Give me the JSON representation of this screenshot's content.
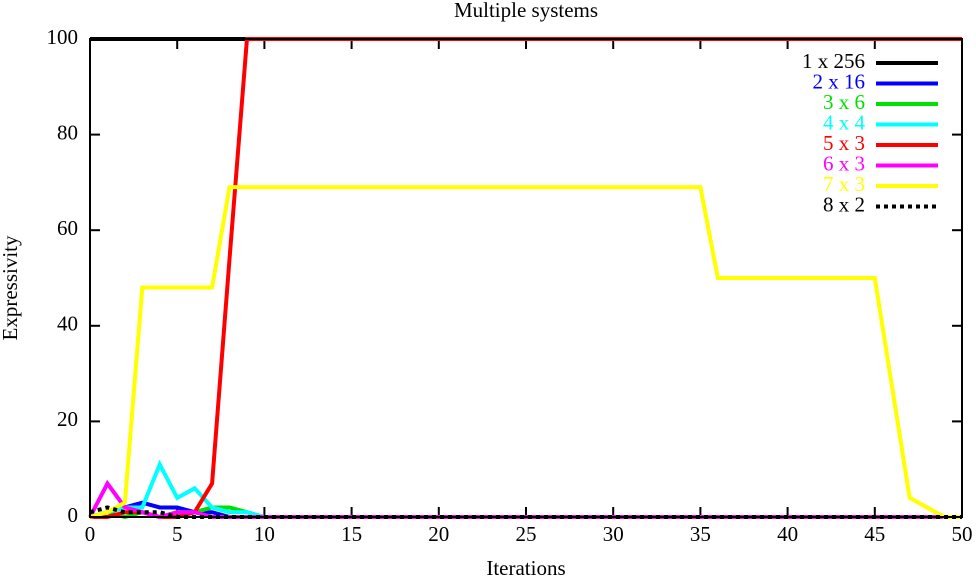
{
  "chart_data": {
    "type": "line",
    "title": "Multiple systems",
    "x_label": "Iterations",
    "y_label": "Expressivity",
    "x": [
      0,
      1,
      2,
      3,
      4,
      5,
      6,
      7,
      8,
      9,
      10,
      11,
      12,
      13,
      14,
      15,
      16,
      17,
      18,
      19,
      20,
      21,
      22,
      23,
      24,
      25,
      26,
      27,
      28,
      29,
      30,
      31,
      32,
      33,
      34,
      35,
      36,
      37,
      38,
      39,
      40,
      41,
      42,
      43,
      44,
      45,
      46,
      47,
      48,
      49,
      50
    ],
    "xlim": [
      0,
      50
    ],
    "xticks": [
      0,
      5,
      10,
      15,
      20,
      25,
      30,
      35,
      40,
      45,
      50
    ],
    "ylim": [
      0,
      100
    ],
    "yticks": [
      0,
      20,
      40,
      60,
      80,
      100
    ],
    "legend": "upper right",
    "series": [
      {
        "name": "1 x 256",
        "color": "#000000",
        "values": [
          100,
          100,
          100,
          100,
          100,
          100,
          100,
          100,
          100,
          100,
          100,
          100,
          100,
          100,
          100,
          100,
          100,
          100,
          100,
          100,
          100,
          100,
          100,
          100,
          100,
          100,
          100,
          100,
          100,
          100,
          100,
          100,
          100,
          100,
          100,
          100,
          100,
          100,
          100,
          100,
          100,
          100,
          100,
          100,
          100,
          100,
          100,
          100,
          100,
          100,
          100
        ]
      },
      {
        "name": "2 x 16",
        "color": "#0000ff",
        "values": [
          0,
          1,
          2,
          3,
          2,
          2,
          1,
          1,
          0,
          0,
          0,
          0,
          0,
          0,
          0,
          0,
          0,
          0,
          0,
          0,
          0,
          0,
          0,
          0,
          0,
          0,
          0,
          0,
          0,
          0,
          0,
          0,
          0,
          0,
          0,
          0,
          0,
          0,
          0,
          0,
          0,
          0,
          0,
          0,
          0,
          0,
          0,
          0,
          0,
          0,
          0
        ]
      },
      {
        "name": "3 x 6",
        "color": "#00e000",
        "values": [
          0,
          1,
          0,
          1,
          0,
          1,
          1,
          2,
          2,
          1,
          0,
          0,
          0,
          0,
          0,
          0,
          0,
          0,
          0,
          0,
          0,
          0,
          0,
          0,
          0,
          0,
          0,
          0,
          0,
          0,
          0,
          0,
          0,
          0,
          0,
          0,
          0,
          0,
          0,
          0,
          0,
          0,
          0,
          0,
          0,
          0,
          0,
          0,
          0,
          0,
          0
        ]
      },
      {
        "name": "4 x 4",
        "color": "#00ffff",
        "values": [
          0,
          1,
          2,
          2,
          11,
          4,
          6,
          2,
          1,
          1,
          0,
          0,
          0,
          0,
          0,
          0,
          0,
          0,
          0,
          0,
          0,
          0,
          0,
          0,
          0,
          0,
          0,
          0,
          0,
          0,
          0,
          0,
          0,
          0,
          0,
          0,
          0,
          0,
          0,
          0,
          0,
          0,
          0,
          0,
          0,
          0,
          0,
          0,
          0,
          0,
          0
        ]
      },
      {
        "name": "5 x 3",
        "color": "#ff0000",
        "values": [
          0,
          0,
          1,
          1,
          0,
          0,
          1,
          7,
          54,
          100,
          100,
          100,
          100,
          100,
          100,
          100,
          100,
          100,
          100,
          100,
          100,
          100,
          100,
          100,
          100,
          100,
          100,
          100,
          100,
          100,
          100,
          100,
          100,
          100,
          100,
          100,
          100,
          100,
          100,
          100,
          100,
          100,
          100,
          100,
          100,
          100,
          100,
          100,
          100,
          100,
          100
        ]
      },
      {
        "name": "6 x 3",
        "color": "#ff00ff",
        "values": [
          0,
          7,
          2,
          1,
          0,
          1,
          1,
          0,
          0,
          0,
          0,
          0,
          0,
          0,
          0,
          0,
          0,
          0,
          0,
          0,
          0,
          0,
          0,
          0,
          0,
          0,
          0,
          0,
          0,
          0,
          0,
          0,
          0,
          0,
          0,
          0,
          0,
          0,
          0,
          0,
          0,
          0,
          0,
          0,
          0,
          0,
          0,
          0,
          0,
          0,
          0
        ]
      },
      {
        "name": "7 x 3",
        "color": "#ffff00",
        "values": [
          0,
          1,
          3,
          48,
          48,
          48,
          48,
          48,
          69,
          69,
          69,
          69,
          69,
          69,
          69,
          69,
          69,
          69,
          69,
          69,
          69,
          69,
          69,
          69,
          69,
          69,
          69,
          69,
          69,
          69,
          69,
          69,
          69,
          69,
          69,
          69,
          50,
          50,
          50,
          50,
          50,
          50,
          50,
          50,
          50,
          50,
          27,
          4,
          2,
          0,
          0
        ]
      },
      {
        "name": "8 x 2",
        "color": "#000000",
        "dashed": true,
        "values": [
          1,
          2,
          1,
          1,
          1,
          0,
          0,
          0,
          0,
          0,
          0,
          0,
          0,
          0,
          0,
          0,
          0,
          0,
          0,
          0,
          0,
          0,
          0,
          0,
          0,
          0,
          0,
          0,
          0,
          0,
          0,
          0,
          0,
          0,
          0,
          0,
          0,
          0,
          0,
          0,
          0,
          0,
          0,
          0,
          0,
          0,
          0,
          0,
          0,
          0,
          0
        ]
      }
    ]
  }
}
